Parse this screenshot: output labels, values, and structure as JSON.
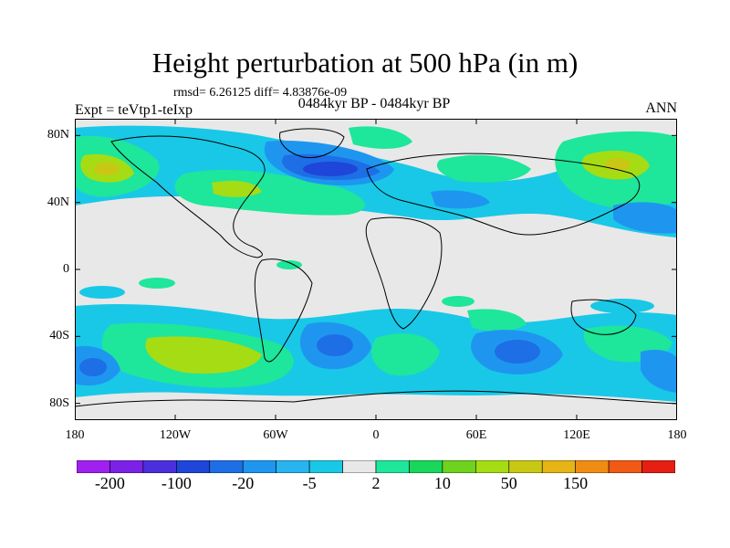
{
  "header": {
    "title": "Height perturbation at 500 hPa (in m)",
    "stats": "rmsd= 6.26125 diff= 4.83876e-09",
    "left_label": "Expt = teVtp1-teIxp",
    "center_label": "0484kyr BP - 0484kyr BP",
    "right_label": "ANN"
  },
  "axes": {
    "x_ticks": [
      "180",
      "120W",
      "60W",
      "0",
      "60E",
      "120E",
      "180"
    ],
    "x_tick_lon": [
      -180,
      -120,
      -60,
      0,
      60,
      120,
      180
    ],
    "y_ticks": [
      "80N",
      "40N",
      "0",
      "40S",
      "80S"
    ],
    "y_tick_lat": [
      80,
      40,
      0,
      -40,
      -80
    ],
    "lon_range": [
      -180,
      180
    ],
    "lat_range": [
      -90,
      90
    ]
  },
  "colorbar": {
    "labels": [
      "-200",
      "-100",
      "-20",
      "-5",
      "2",
      "10",
      "50",
      "150"
    ],
    "colors": [
      "#a020f0",
      "#7b22e6",
      "#4b2fdc",
      "#1e46d8",
      "#1e6ee6",
      "#1e96f0",
      "#28b4f0",
      "#19c8e6",
      "#e8e8e8",
      "#1ee69b",
      "#19d75a",
      "#6ed21e",
      "#a5dc14",
      "#c8c814",
      "#e6b414",
      "#f08c14",
      "#f05a14",
      "#e61e14"
    ]
  },
  "colors": {
    "strong_neg": "#1e46d8",
    "neg": "#1e6ee6",
    "mid_neg": "#1e96f0",
    "weak_neg": "#19c8e6",
    "neutral": "#e8e8e8",
    "weak_pos": "#1ee69b",
    "pos": "#19d75a",
    "strong_pos": "#a5dc14",
    "peak_pos": "#c8c814"
  }
}
